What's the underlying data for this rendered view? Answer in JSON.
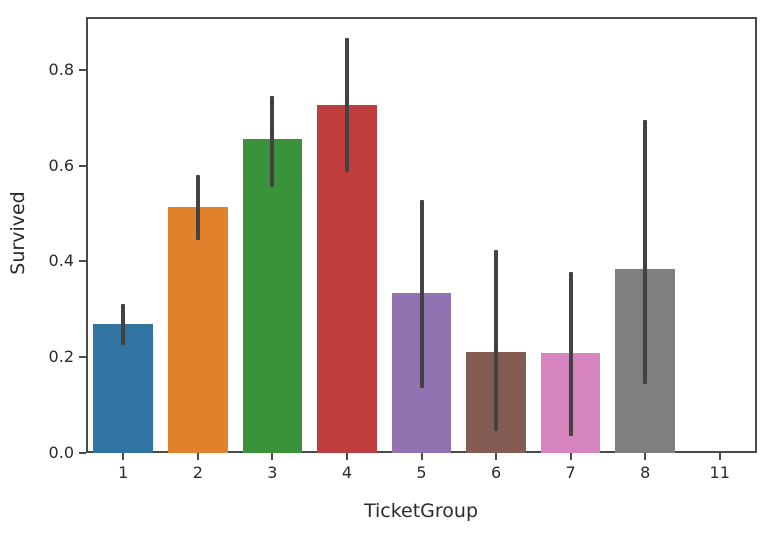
{
  "chart_data": {
    "type": "bar",
    "title": "",
    "xlabel": "TicketGroup",
    "ylabel": "Survived",
    "categories": [
      "1",
      "2",
      "3",
      "4",
      "5",
      "6",
      "7",
      "8",
      "11"
    ],
    "values": [
      0.27,
      0.514,
      0.655,
      0.727,
      0.333,
      0.211,
      0.208,
      0.385,
      0.0
    ],
    "error_bars": {
      "low": [
        0.226,
        0.445,
        0.556,
        0.587,
        0.135,
        0.046,
        0.036,
        0.144,
        null
      ],
      "high": [
        0.312,
        0.581,
        0.746,
        0.867,
        0.528,
        0.424,
        0.378,
        0.696,
        null
      ]
    },
    "bar_colors": [
      "#3274a1",
      "#e1812c",
      "#3a923a",
      "#c03d3e",
      "#9372b2",
      "#845b53",
      "#d684bd",
      "#7f7f7f",
      "#b3b134"
    ],
    "errorbar_color": "#424242",
    "ytick_labels": [
      "0.0",
      "0.2",
      "0.4",
      "0.6",
      "0.8"
    ],
    "ytick_values": [
      0.0,
      0.2,
      0.4,
      0.6,
      0.8
    ],
    "ylim": [
      0,
      0.91
    ],
    "grid": false,
    "legend": null,
    "background_color": "#ffffff",
    "spine_color": "#4a4a4a",
    "text_color": "#2b2b2b"
  }
}
